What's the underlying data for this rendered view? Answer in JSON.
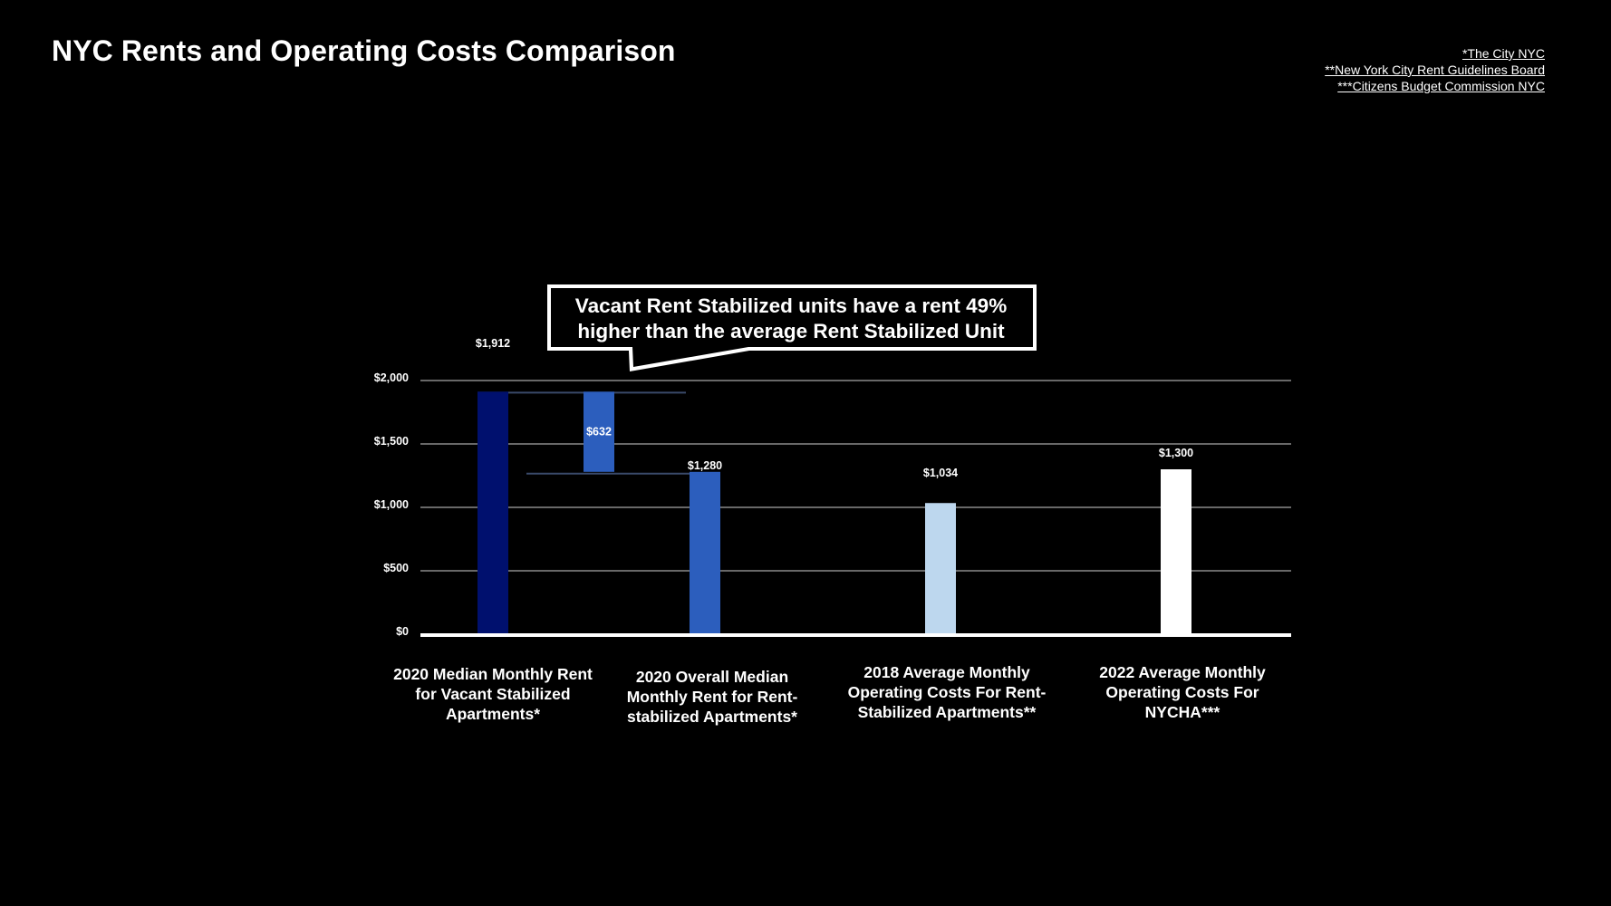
{
  "page": {
    "title": "NYC Rents and Operating Costs Comparison"
  },
  "sources": [
    "*The City NYC",
    "**New York City Rent Guidelines Board",
    "***Citizens Budget Commission NYC"
  ],
  "callout": {
    "line1": "Vacant Rent Stabilized units have a rent 49%",
    "line2": "higher than the average Rent Stabilized Unit"
  },
  "colors": {
    "background": "#000000",
    "gridline": "#8a8a8a",
    "axis": "#ffffff",
    "text": "#ffffff"
  },
  "chart_data": {
    "type": "bar",
    "subtype": "waterfall",
    "categories": [
      "2020 Median Monthly Rent for Vacant Stabilized Apartments*",
      "2020 Overall Median Monthly Rent for Rent-stabilized Apartments*",
      "2018 Average Monthly Operating Costs For Rent-Stabilized Apartments**",
      "2022 Average Monthly Operating Costs For NYCHA***"
    ],
    "bars": [
      {
        "category_index": 0,
        "label": "$1,912",
        "start": 0,
        "end": 1912,
        "color": "#00106e"
      },
      {
        "category_index": 0.5,
        "label": "$632",
        "start": 1280,
        "end": 1912,
        "color": "#2c5ebd",
        "difference": true
      },
      {
        "category_index": 1,
        "label": "$1,280",
        "start": 0,
        "end": 1280,
        "color": "#2c5ebd"
      },
      {
        "category_index": 2,
        "label": "$1,034",
        "start": 0,
        "end": 1034,
        "color": "#bdd7ee"
      },
      {
        "category_index": 3,
        "label": "$1,300",
        "start": 0,
        "end": 1300,
        "color": "#ffffff"
      }
    ],
    "yticks": [
      "$0",
      "$500",
      "$1,000",
      "$1,500",
      "$2,000"
    ],
    "ytick_values": [
      0,
      500,
      1000,
      1500,
      2000
    ],
    "ylim": [
      0,
      2000
    ],
    "grid": true,
    "legend": "none"
  }
}
